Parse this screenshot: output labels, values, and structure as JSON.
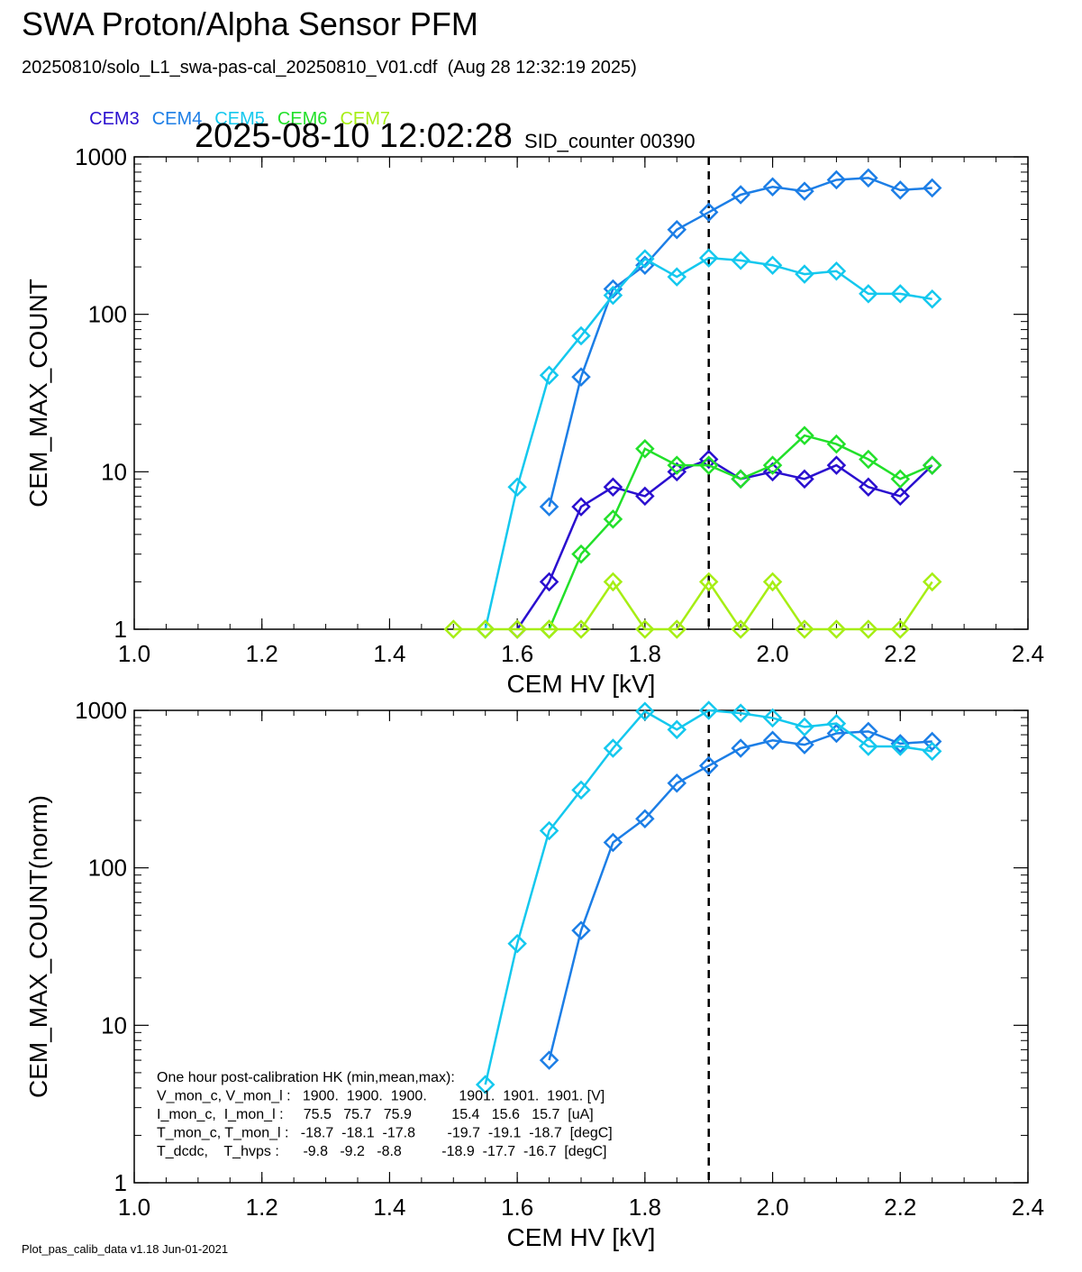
{
  "header": {
    "title": "SWA Proton/Alpha Sensor PFM",
    "subtitle": "20250810/solo_L1_swa-pas-cal_20250810_V01.cdf  (Aug 28 12:32:19 2025)",
    "timestamp": "2025-08-10 12:02:28",
    "sid_counter": "SID_counter 00390"
  },
  "legend": [
    {
      "name": "CEM3",
      "color": "#2a0fcf"
    },
    {
      "name": "CEM4",
      "color": "#1c7ee6"
    },
    {
      "name": "CEM5",
      "color": "#14c8ee"
    },
    {
      "name": "CEM6",
      "color": "#22e02a"
    },
    {
      "name": "CEM7",
      "color": "#a6ee14"
    }
  ],
  "footer": "Plot_pas_calib_data v1.18 Jun-01-2021",
  "hk_box": {
    "lines": [
      "One hour post-calibration HK (min,mean,max):",
      "V_mon_c, V_mon_l :   1900.  1900.  1900.        1901.  1901.  1901. [V]",
      "I_mon_c,  I_mon_l :     75.5   75.7   75.9          15.4   15.6   15.7  [uA]",
      "T_mon_c, T_mon_l :   -18.7  -18.1  -17.8        -19.7  -19.1  -18.7  [degC]",
      "T_dcdc,    T_hvps :      -9.8   -9.2   -8.8          -18.9  -17.7  -16.7  [degC]"
    ]
  },
  "chart_data": [
    {
      "type": "line",
      "title": "",
      "xlabel": "CEM HV [kV]",
      "ylabel": "CEM_MAX_COUNT",
      "xlim": [
        1.0,
        2.4
      ],
      "ylim": [
        1,
        1000
      ],
      "yscale": "log",
      "x_ticks": [
        "1.0",
        "1.2",
        "1.4",
        "1.6",
        "1.8",
        "2.0",
        "2.2",
        "2.4"
      ],
      "y_ticks": [
        "1",
        "10",
        "100",
        "1000"
      ],
      "vline_x": 1.9,
      "x": [
        1.5,
        1.55,
        1.6,
        1.65,
        1.7,
        1.75,
        1.8,
        1.85,
        1.9,
        1.95,
        2.0,
        2.05,
        2.1,
        2.15,
        2.2,
        2.25
      ],
      "series": [
        {
          "name": "CEM3",
          "color": "#2a0fcf",
          "values": [
            null,
            null,
            1,
            2,
            6,
            8,
            7,
            10,
            12,
            9,
            10,
            9,
            11,
            8,
            7,
            11
          ]
        },
        {
          "name": "CEM4",
          "color": "#1c7ee6",
          "values": [
            null,
            null,
            null,
            6,
            40,
            145,
            205,
            345,
            445,
            575,
            645,
            605,
            715,
            735,
            615,
            635
          ]
        },
        {
          "name": "CEM5",
          "color": "#14c8ee",
          "values": [
            null,
            1,
            8,
            41,
            73,
            132,
            225,
            173,
            228,
            220,
            205,
            180,
            188,
            135,
            135,
            125
          ]
        },
        {
          "name": "CEM6",
          "color": "#22e02a",
          "values": [
            null,
            null,
            null,
            1,
            3,
            5,
            14,
            11,
            11,
            9,
            11,
            17,
            15,
            12,
            9,
            11
          ]
        },
        {
          "name": "CEM7",
          "color": "#a6ee14",
          "values": [
            1,
            1,
            1,
            1,
            1,
            2,
            1,
            1,
            2,
            1,
            2,
            1,
            1,
            1,
            1,
            2
          ]
        }
      ]
    },
    {
      "type": "line",
      "title": "",
      "xlabel": "CEM HV [kV]",
      "ylabel": "CEM_MAX_COUNT(norm)",
      "xlim": [
        1.0,
        2.4
      ],
      "ylim": [
        1,
        1000
      ],
      "yscale": "log",
      "x_ticks": [
        "1.0",
        "1.2",
        "1.4",
        "1.6",
        "1.8",
        "2.0",
        "2.2",
        "2.4"
      ],
      "y_ticks": [
        "1",
        "10",
        "100",
        "1000"
      ],
      "vline_x": 1.9,
      "x": [
        1.5,
        1.55,
        1.6,
        1.65,
        1.7,
        1.75,
        1.8,
        1.85,
        1.9,
        1.95,
        2.0,
        2.05,
        2.1,
        2.15,
        2.2,
        2.25
      ],
      "series": [
        {
          "name": "CEM4",
          "color": "#1c7ee6",
          "values": [
            null,
            null,
            null,
            6,
            40,
            145,
            205,
            345,
            445,
            575,
            645,
            605,
            715,
            735,
            615,
            635
          ]
        },
        {
          "name": "CEM5",
          "color": "#14c8ee",
          "values": [
            null,
            4.2,
            33,
            172,
            312,
            575,
            985,
            755,
            1000,
            960,
            895,
            785,
            825,
            590,
            590,
            550
          ]
        }
      ]
    }
  ]
}
